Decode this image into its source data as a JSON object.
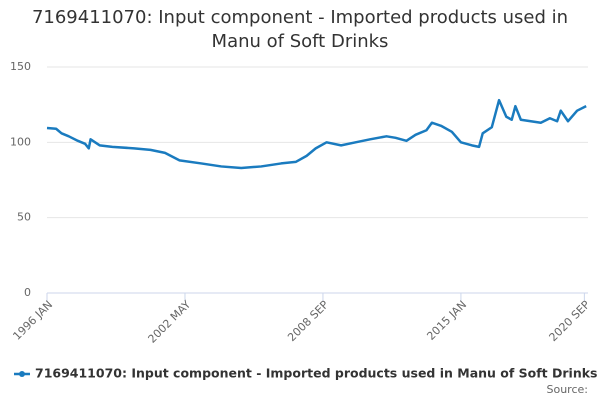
{
  "chart_data": {
    "type": "line",
    "title": "7169411070: Input component - Imported products used in Manu of Soft Drinks",
    "source": "Source:",
    "x": [
      "1996 JAN",
      "1996 JUN",
      "1996 SEP",
      "1997 JAN",
      "1997 JUN",
      "1997 OCT",
      "1997 DEC",
      "1998 JAN",
      "1998 JUN",
      "1999 JAN",
      "2000 JAN",
      "2000 OCT",
      "2001 JUN",
      "2002 FEB",
      "2003 FEB",
      "2004 JAN",
      "2004 DEC",
      "2005 NOV",
      "2006 OCT",
      "2007 JUN",
      "2007 DEC",
      "2008 MAY",
      "2008 NOV",
      "2009 JUL",
      "2010 MAR",
      "2010 NOV",
      "2011 AUG",
      "2012 JAN",
      "2012 JUL",
      "2012 DEC",
      "2013 JUN",
      "2013 SEP",
      "2014 FEB",
      "2014 AUG",
      "2015 JAN",
      "2015 JUL",
      "2015 NOV",
      "2016 JAN",
      "2016 JUN",
      "2016 OCT",
      "2017 FEB",
      "2017 MAY",
      "2017 JUL",
      "2017 OCT",
      "2018 SEP",
      "2019 FEB",
      "2019 JUN",
      "2019 AUG",
      "2019 DEC",
      "2020 MAY",
      "2020 OCT"
    ],
    "series": [
      {
        "name": "7169411070: Input component - Imported products used in Manu of Soft Drinks",
        "color": "#1a7bbf",
        "values": [
          109.5,
          109,
          106,
          104,
          101,
          99,
          96,
          102,
          98,
          97,
          96,
          95,
          93,
          88,
          86,
          84,
          83,
          84,
          86,
          87,
          91,
          96,
          100,
          98,
          100,
          102,
          104,
          103,
          101,
          105,
          108,
          113,
          111,
          107,
          100,
          98,
          97,
          106,
          110,
          128,
          117,
          115,
          124,
          115,
          113,
          116,
          114,
          121,
          114,
          121,
          124
        ]
      }
    ],
    "xlim": [
      "1996 JAN",
      "2020 NOV"
    ],
    "xticks": [
      "1996 JAN",
      "2002 MAY",
      "2008 SEP",
      "2015 JAN",
      "2020 SEP"
    ],
    "ylim": [
      0,
      150
    ],
    "yticks": [
      0,
      50,
      100,
      150
    ],
    "grid": true
  }
}
